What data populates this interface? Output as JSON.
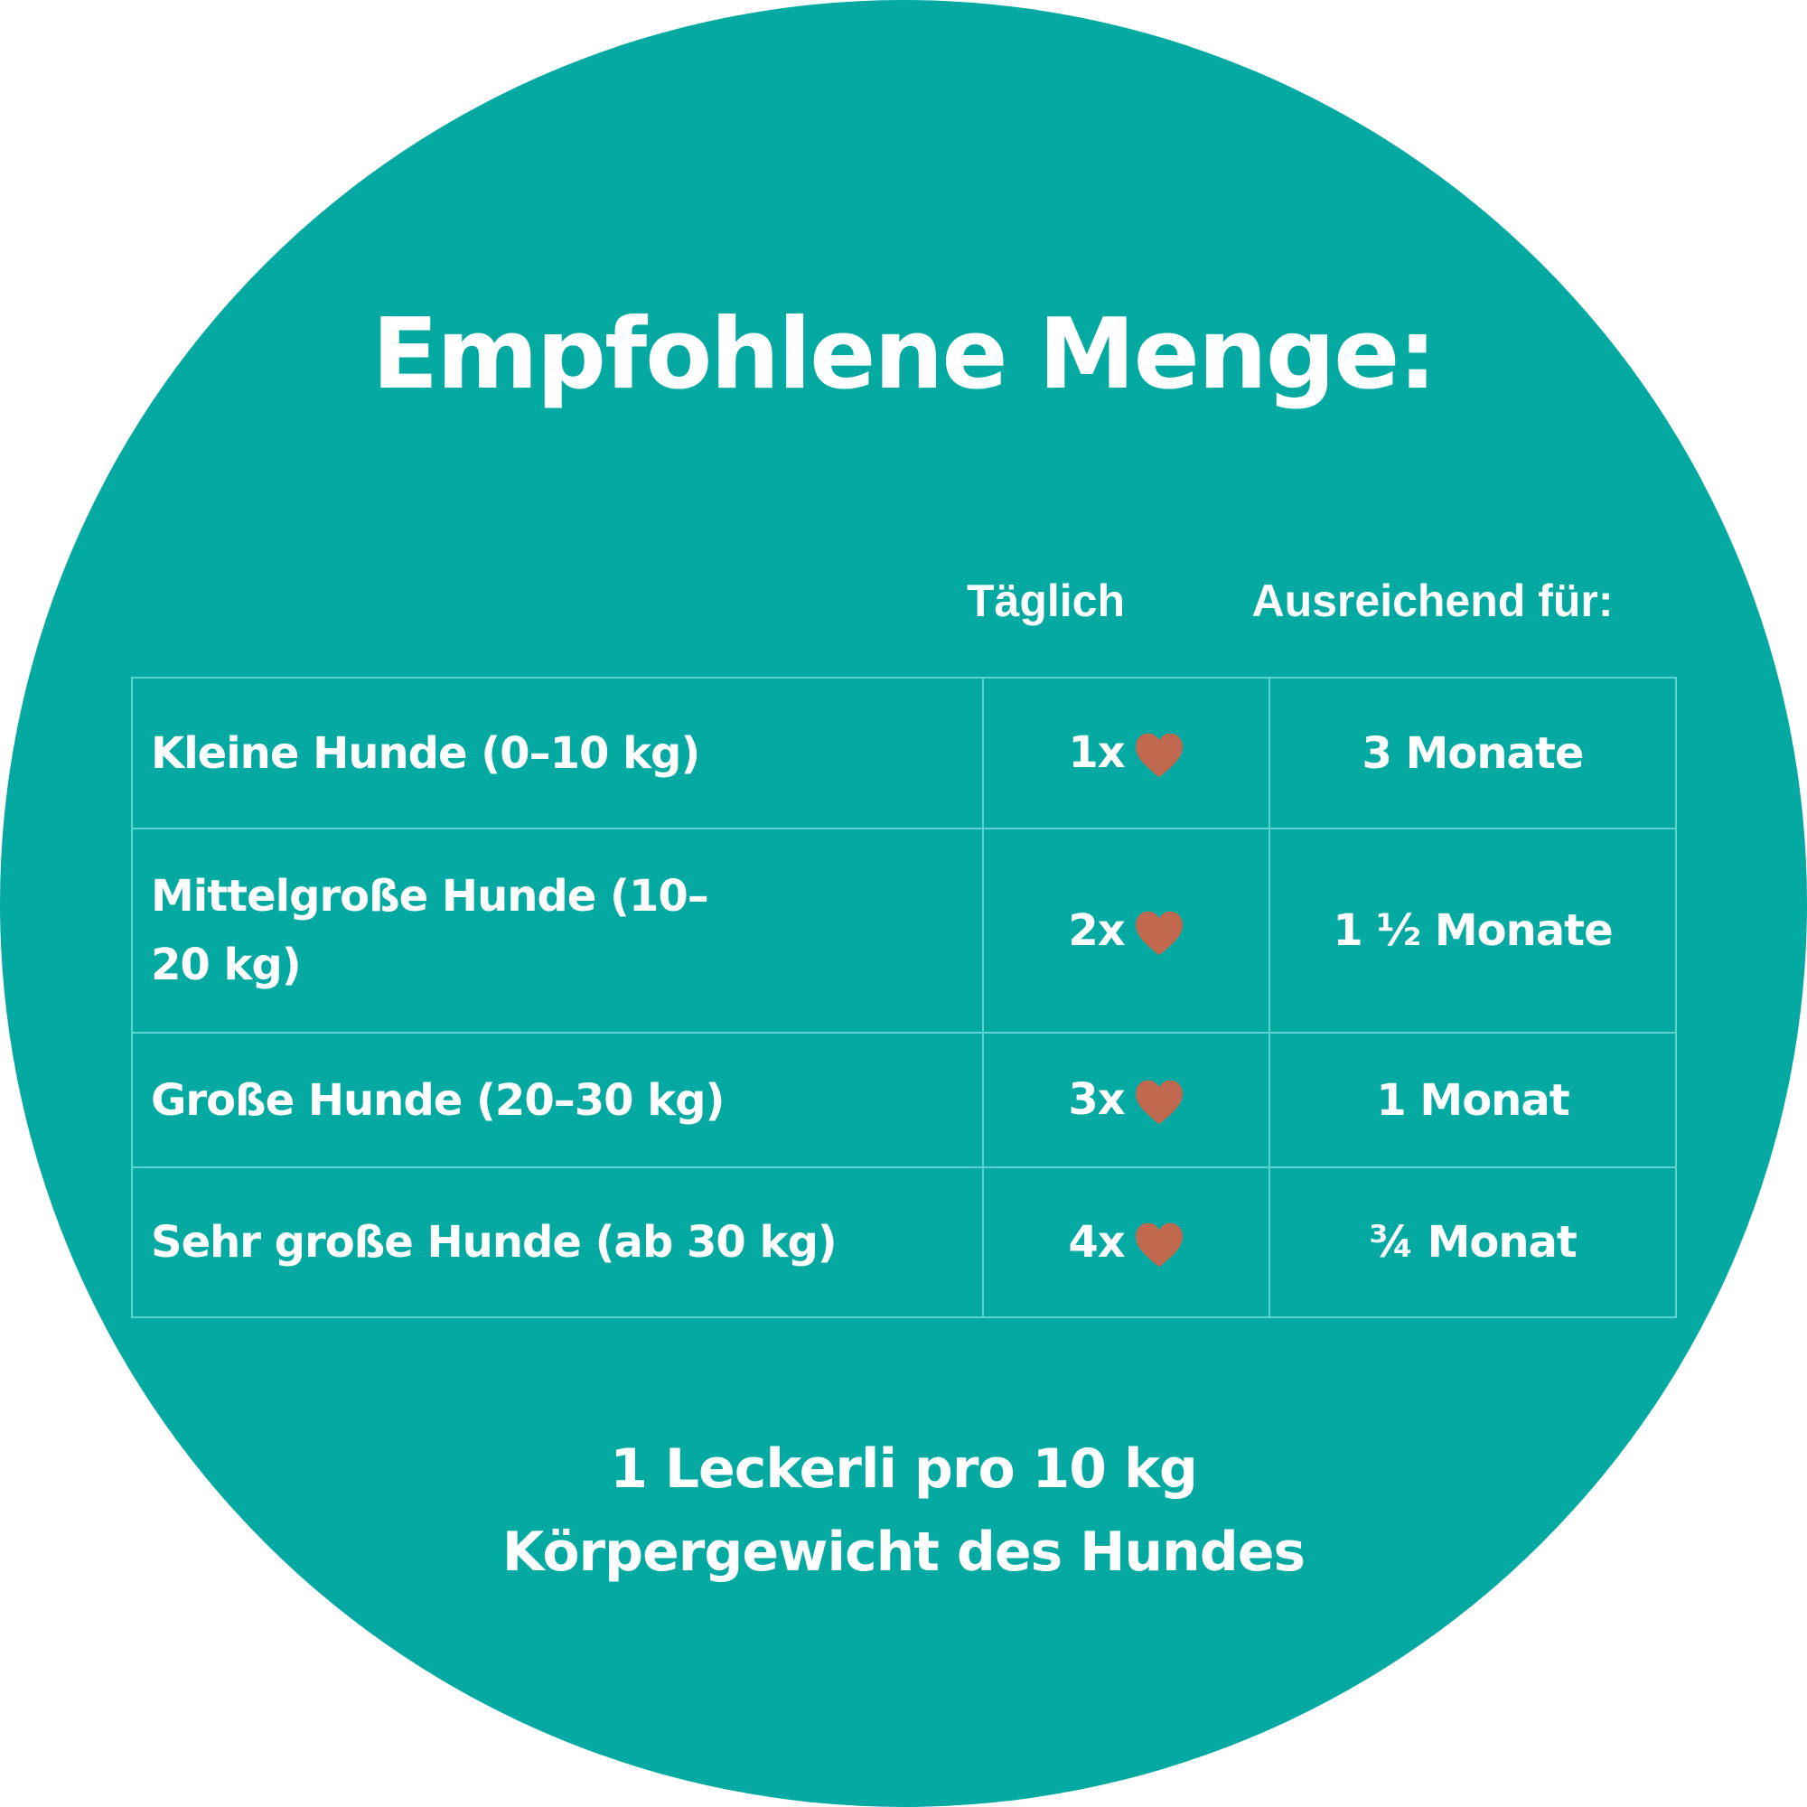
{
  "title": "Empfohlene Menge:",
  "headers": {
    "daily": "Täglich",
    "duration": "Ausreichend für:"
  },
  "rows": [
    {
      "size": "Kleine Hunde (0–10 kg)",
      "daily": "1x",
      "duration": "3 Monate"
    },
    {
      "size": "Mittelgroße Hunde (10–20 kg)",
      "daily": "2x",
      "duration": "1 ½ Monate"
    },
    {
      "size": "Große Hunde (20–30 kg)",
      "daily": "3x",
      "duration": "1 Monat"
    },
    {
      "size": "Sehr große Hunde (ab 30 kg)",
      "daily": "4x",
      "duration": "¾ Monat"
    }
  ],
  "footer": {
    "line1": "1 Leckerli pro 10 kg",
    "line2": "Körpergewicht des Hundes"
  },
  "colors": {
    "background": "#04A9A2",
    "heart": "#C0694F",
    "grid": "#5FD3D0",
    "text": "#FFFFFF"
  },
  "icons": {
    "treat": "heart-icon"
  }
}
